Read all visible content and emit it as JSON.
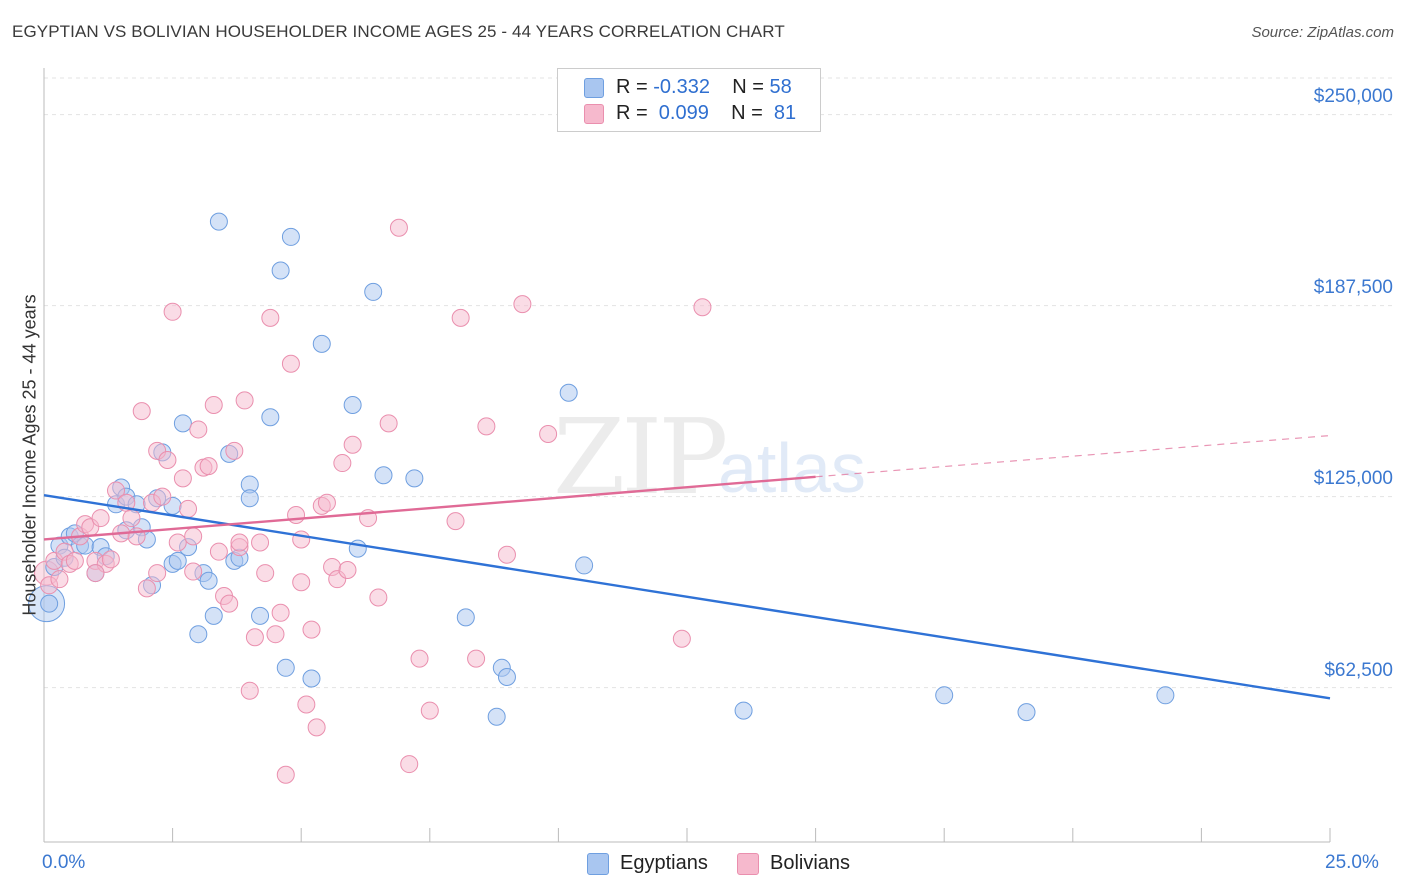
{
  "header": {
    "title": "EGYPTIAN VS BOLIVIAN HOUSEHOLDER INCOME AGES 25 - 44 YEARS CORRELATION CHART",
    "source": "Source: ZipAtlas.com"
  },
  "legend": {
    "rows": [
      {
        "r_label": "R = ",
        "r_value": "-0.332",
        "n_label": "N = ",
        "n_value": "58"
      },
      {
        "r_label": "R = ",
        "r_value": " 0.099",
        "n_label": "N = ",
        "n_value": " 81"
      }
    ]
  },
  "watermark": {
    "zip": "ZIP",
    "atlas": "atlas"
  },
  "colors": {
    "egyptians_fill": "#a9c6f0",
    "egyptians_stroke": "#6f9fe0",
    "egyptians_line": "#2f72d6",
    "bolivians_fill": "#f6b9cd",
    "bolivians_stroke": "#ea8fae",
    "bolivians_line": "#e06a96",
    "tick_text": "#3b78d0",
    "grid": "#e3e3e3"
  },
  "chart_data": {
    "type": "scatter",
    "title": "EGYPTIAN VS BOLIVIAN HOUSEHOLDER INCOME AGES 25 - 44 YEARS CORRELATION CHART",
    "xlabel": "",
    "ylabel": "Householder Income Ages 25 - 44 years",
    "xlim": [
      0,
      25
    ],
    "ylim": [
      12000,
      262000
    ],
    "x_tick_labels": [
      "0.0%",
      "25.0%"
    ],
    "y_ticks": [
      62500,
      125000,
      187500,
      250000
    ],
    "y_tick_labels": [
      "$62,500",
      "$125,000",
      "$187,500",
      "$250,000"
    ],
    "grid": true,
    "legend_position": "top-center and bottom",
    "series": [
      {
        "name": "Egyptians",
        "R": -0.332,
        "N": 58,
        "trend": {
          "x": [
            0,
            25
          ],
          "y": [
            125500,
            59000
          ],
          "dashed_from": null
        },
        "points": [
          [
            0.1,
            90000
          ],
          [
            0.2,
            102000
          ],
          [
            0.3,
            109000
          ],
          [
            0.4,
            105000
          ],
          [
            0.5,
            112000
          ],
          [
            0.6,
            113000
          ],
          [
            0.7,
            109000
          ],
          [
            0.8,
            109000
          ],
          [
            1.0,
            100000
          ],
          [
            1.1,
            108500
          ],
          [
            1.2,
            105500
          ],
          [
            1.4,
            122500
          ],
          [
            1.5,
            128000
          ],
          [
            1.6,
            114000
          ],
          [
            1.6,
            125000
          ],
          [
            1.8,
            122500
          ],
          [
            1.9,
            115000
          ],
          [
            2.0,
            111000
          ],
          [
            2.1,
            96000
          ],
          [
            2.2,
            124500
          ],
          [
            2.3,
            139500
          ],
          [
            2.5,
            103000
          ],
          [
            2.5,
            122000
          ],
          [
            2.6,
            104000
          ],
          [
            2.7,
            149000
          ],
          [
            2.8,
            108500
          ],
          [
            3.0,
            80000
          ],
          [
            3.1,
            100000
          ],
          [
            3.2,
            97500
          ],
          [
            3.3,
            86000
          ],
          [
            3.4,
            215000
          ],
          [
            3.6,
            139000
          ],
          [
            3.7,
            104000
          ],
          [
            3.8,
            105000
          ],
          [
            4.0,
            129000
          ],
          [
            4.0,
            124500
          ],
          [
            4.2,
            86000
          ],
          [
            4.4,
            151000
          ],
          [
            4.6,
            199000
          ],
          [
            4.7,
            69000
          ],
          [
            4.8,
            210000
          ],
          [
            5.2,
            65500
          ],
          [
            5.4,
            175000
          ],
          [
            6.0,
            155000
          ],
          [
            6.1,
            108000
          ],
          [
            6.4,
            192000
          ],
          [
            6.6,
            132000
          ],
          [
            7.2,
            131000
          ],
          [
            8.2,
            85500
          ],
          [
            8.8,
            53000
          ],
          [
            8.9,
            69000
          ],
          [
            9.0,
            66000
          ],
          [
            10.2,
            159000
          ],
          [
            10.5,
            102500
          ],
          [
            13.6,
            55000
          ],
          [
            17.5,
            60000
          ],
          [
            19.1,
            54500
          ],
          [
            21.8,
            60000
          ]
        ]
      },
      {
        "name": "Bolivians",
        "R": 0.099,
        "N": 81,
        "trend": {
          "x": [
            0,
            15,
            25
          ],
          "y": [
            111000,
            131500,
            145000
          ],
          "dashed_from": 15
        },
        "points": [
          [
            0.1,
            96000
          ],
          [
            0.2,
            104000
          ],
          [
            0.3,
            98000
          ],
          [
            0.4,
            107000
          ],
          [
            0.5,
            103000
          ],
          [
            0.6,
            104000
          ],
          [
            0.7,
            112000
          ],
          [
            0.8,
            116000
          ],
          [
            0.9,
            115000
          ],
          [
            1.0,
            104000
          ],
          [
            1.1,
            118000
          ],
          [
            1.2,
            103000
          ],
          [
            1.3,
            104500
          ],
          [
            1.4,
            127000
          ],
          [
            1.5,
            113000
          ],
          [
            1.6,
            123000
          ],
          [
            1.7,
            118000
          ],
          [
            1.8,
            112000
          ],
          [
            1.9,
            153000
          ],
          [
            2.0,
            95000
          ],
          [
            2.1,
            123000
          ],
          [
            2.2,
            140000
          ],
          [
            2.3,
            125000
          ],
          [
            2.4,
            137000
          ],
          [
            2.5,
            185500
          ],
          [
            2.6,
            110000
          ],
          [
            2.7,
            131000
          ],
          [
            2.8,
            121000
          ],
          [
            2.9,
            112000
          ],
          [
            3.0,
            147000
          ],
          [
            3.1,
            134500
          ],
          [
            3.2,
            135000
          ],
          [
            3.3,
            155000
          ],
          [
            3.4,
            107000
          ],
          [
            3.5,
            92500
          ],
          [
            3.6,
            90000
          ],
          [
            3.7,
            140000
          ],
          [
            3.8,
            108500
          ],
          [
            3.9,
            156500
          ],
          [
            4.0,
            61500
          ],
          [
            4.1,
            79000
          ],
          [
            4.2,
            110000
          ],
          [
            4.3,
            100000
          ],
          [
            4.4,
            183500
          ],
          [
            4.5,
            80000
          ],
          [
            4.6,
            87000
          ],
          [
            4.7,
            34000
          ],
          [
            4.8,
            168500
          ],
          [
            4.9,
            119000
          ],
          [
            5.0,
            111000
          ],
          [
            5.1,
            57000
          ],
          [
            5.2,
            81500
          ],
          [
            5.3,
            49500
          ],
          [
            5.4,
            122000
          ],
          [
            5.5,
            123000
          ],
          [
            5.6,
            102000
          ],
          [
            5.7,
            98000
          ],
          [
            5.8,
            136000
          ],
          [
            5.9,
            101000
          ],
          [
            6.0,
            142000
          ],
          [
            6.3,
            118000
          ],
          [
            6.5,
            92000
          ],
          [
            6.7,
            149000
          ],
          [
            6.9,
            213000
          ],
          [
            7.1,
            37500
          ],
          [
            7.3,
            72000
          ],
          [
            7.5,
            55000
          ],
          [
            8.0,
            117000
          ],
          [
            8.1,
            183500
          ],
          [
            8.4,
            72000
          ],
          [
            8.6,
            148000
          ],
          [
            9.0,
            106000
          ],
          [
            9.3,
            188000
          ],
          [
            9.8,
            145500
          ],
          [
            12.4,
            78500
          ],
          [
            12.8,
            187000
          ],
          [
            2.2,
            100000
          ],
          [
            1.0,
            100000
          ],
          [
            3.8,
            110000
          ],
          [
            2.9,
            100500
          ],
          [
            5.0,
            97000
          ]
        ]
      }
    ]
  },
  "bottom_legend": {
    "items": [
      "Egyptians",
      "Bolivians"
    ]
  }
}
